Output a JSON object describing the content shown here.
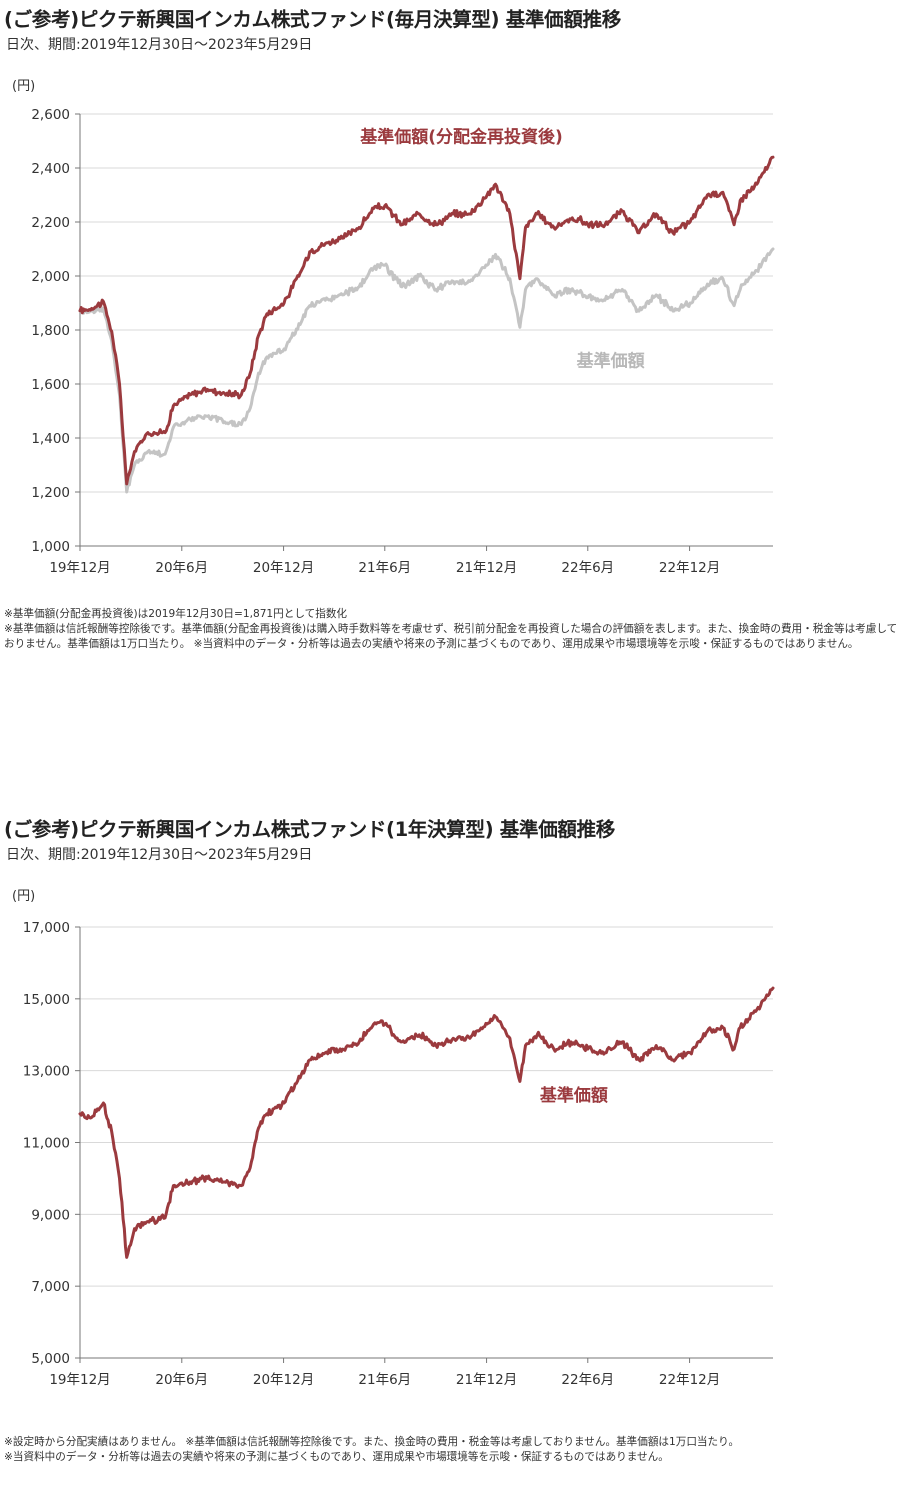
{
  "charts": [
    {
      "title": "(ご参考)ピクテ新興国インカム株式ファンド(毎月決算型) 基準価額推移",
      "subtitle": "日次、期間:2019年12月30日～2023年5月29日",
      "notes": [
        "※基準価額(分配金再投資後)は2019年12月30日=1,871円として指数化",
        "※基準価額は信託報酬等控除後です。基準価額(分配金再投資後)は購入時手数料等を考慮せず、税引前分配金を再投資した場合の評価額を表します。また、換金時の費用・税金等は考慮しておりません。基準価額は1万口当たり。 ※当資料中のデータ・分析等は過去の実績や将来の予測に基づくものであり、運用成果や市場環境等を示唆・保証するものではありません。"
      ]
    },
    {
      "title": "(ご参考)ピクテ新興国インカム株式ファンド(1年決算型) 基準価額推移",
      "subtitle": "日次、期間:2019年12月30日～2023年5月29日",
      "notes": [
        "※設定時から分配実績はありません。 ※基準価額は信託報酬等控除後です。また、換金時の費用・税金等は考慮しておりません。基準価額は1万口当たり。",
        "※当資料中のデータ・分析等は過去の実績や将来の予測に基づくものであり、運用成果や市場環境等を示唆・保証するものではありません。"
      ]
    }
  ],
  "chart_data": [
    {
      "type": "line",
      "unit_label": "(円)",
      "ylim": [
        1000,
        2600
      ],
      "yticks": [
        "1,000",
        "1,200",
        "1,400",
        "1,600",
        "1,800",
        "2,000",
        "2,200",
        "2,400",
        "2,600"
      ],
      "ytick_values": [
        1000,
        1200,
        1400,
        1600,
        1800,
        2000,
        2200,
        2400,
        2600
      ],
      "xlim": [
        "2019-12-30",
        "2023-05-29"
      ],
      "xticks": [
        "19年12月",
        "20年6月",
        "20年12月",
        "21年6月",
        "21年12月",
        "22年6月",
        "22年12月"
      ],
      "xtick_dates": [
        "2019-12-30",
        "2020-06-30",
        "2020-12-30",
        "2021-06-30",
        "2021-12-30",
        "2022-06-30",
        "2022-12-30"
      ],
      "grid": true,
      "colors": {
        "reinvested": "#9b3a3e",
        "nav": "#c4c4c4",
        "grid": "#d9d9d9",
        "axis": "#777777"
      },
      "series": [
        {
          "name": "基準価額(分配金再投資後)",
          "color": "#9b3a3e",
          "x": [
            "2019-12-30",
            "2020-01-20",
            "2020-02-10",
            "2020-02-25",
            "2020-03-10",
            "2020-03-23",
            "2020-04-06",
            "2020-04-30",
            "2020-05-31",
            "2020-06-15",
            "2020-07-15",
            "2020-08-15",
            "2020-09-15",
            "2020-10-15",
            "2020-10-31",
            "2020-11-15",
            "2020-11-30",
            "2020-12-31",
            "2021-01-31",
            "2021-02-15",
            "2021-03-15",
            "2021-04-15",
            "2021-05-15",
            "2021-06-10",
            "2021-06-30",
            "2021-07-31",
            "2021-08-31",
            "2021-09-30",
            "2021-10-31",
            "2021-11-30",
            "2021-12-31",
            "2022-01-15",
            "2022-02-10",
            "2022-02-28",
            "2022-03-10",
            "2022-03-31",
            "2022-04-30",
            "2022-05-31",
            "2022-06-15",
            "2022-06-30",
            "2022-07-31",
            "2022-08-31",
            "2022-09-30",
            "2022-10-31",
            "2022-11-30",
            "2022-12-31",
            "2023-01-31",
            "2023-02-28",
            "2023-03-20",
            "2023-03-31",
            "2023-04-30",
            "2023-05-29"
          ],
          "values": [
            1871,
            1880,
            1905,
            1795,
            1600,
            1230,
            1350,
            1420,
            1420,
            1520,
            1560,
            1580,
            1565,
            1560,
            1640,
            1780,
            1860,
            1900,
            2020,
            2090,
            2120,
            2140,
            2180,
            2250,
            2260,
            2190,
            2230,
            2190,
            2230,
            2230,
            2300,
            2340,
            2230,
            1990,
            2180,
            2230,
            2180,
            2210,
            2210,
            2190,
            2190,
            2240,
            2160,
            2230,
            2160,
            2200,
            2300,
            2310,
            2190,
            2280,
            2340,
            2440
          ]
        },
        {
          "name": "基準価額",
          "color": "#c4c4c4",
          "x": [
            "2019-12-30",
            "2020-01-20",
            "2020-02-10",
            "2020-02-25",
            "2020-03-10",
            "2020-03-23",
            "2020-04-06",
            "2020-04-30",
            "2020-05-31",
            "2020-06-15",
            "2020-07-15",
            "2020-08-15",
            "2020-09-15",
            "2020-10-15",
            "2020-10-31",
            "2020-11-15",
            "2020-11-30",
            "2020-12-31",
            "2021-01-31",
            "2021-02-15",
            "2021-03-15",
            "2021-04-15",
            "2021-05-15",
            "2021-06-10",
            "2021-06-30",
            "2021-07-31",
            "2021-08-31",
            "2021-09-30",
            "2021-10-31",
            "2021-11-30",
            "2021-12-31",
            "2022-01-15",
            "2022-02-10",
            "2022-02-28",
            "2022-03-10",
            "2022-03-31",
            "2022-04-30",
            "2022-05-31",
            "2022-06-15",
            "2022-06-30",
            "2022-07-31",
            "2022-08-31",
            "2022-09-30",
            "2022-10-31",
            "2022-11-30",
            "2022-12-31",
            "2023-01-31",
            "2023-02-28",
            "2023-03-20",
            "2023-03-31",
            "2023-04-30",
            "2023-05-29"
          ],
          "values": [
            1871,
            1870,
            1880,
            1760,
            1560,
            1200,
            1300,
            1350,
            1340,
            1440,
            1470,
            1480,
            1460,
            1450,
            1510,
            1640,
            1700,
            1730,
            1830,
            1890,
            1910,
            1930,
            1960,
            2030,
            2040,
            1960,
            2000,
            1950,
            1980,
            1980,
            2040,
            2080,
            1990,
            1810,
            1950,
            1990,
            1930,
            1950,
            1940,
            1920,
            1910,
            1950,
            1870,
            1930,
            1870,
            1900,
            1970,
            1990,
            1890,
            1950,
            2020,
            2100
          ]
        }
      ],
      "annotations": [
        {
          "text": "基準価額(分配金再投資後)",
          "color": "#9b3a3e",
          "x": "2021-11-15",
          "y": 2495
        },
        {
          "text": "基準価額",
          "color": "#b8b8b8",
          "x": "2022-08-10",
          "y": 1665
        }
      ]
    },
    {
      "type": "line",
      "unit_label": "(円)",
      "ylim": [
        5000,
        17000
      ],
      "yticks": [
        "5,000",
        "7,000",
        "9,000",
        "11,000",
        "13,000",
        "15,000",
        "17,000"
      ],
      "ytick_values": [
        5000,
        7000,
        9000,
        11000,
        13000,
        15000,
        17000
      ],
      "xlim": [
        "2019-12-30",
        "2023-05-29"
      ],
      "xticks": [
        "19年12月",
        "20年6月",
        "20年12月",
        "21年6月",
        "21年12月",
        "22年6月",
        "22年12月"
      ],
      "xtick_dates": [
        "2019-12-30",
        "2020-06-30",
        "2020-12-30",
        "2021-06-30",
        "2021-12-30",
        "2022-06-30",
        "2022-12-30"
      ],
      "grid": true,
      "colors": {
        "nav": "#9b3a3e",
        "grid": "#d9d9d9",
        "axis": "#777777"
      },
      "series": [
        {
          "name": "基準価額",
          "color": "#9b3a3e",
          "x": [
            "2019-12-30",
            "2020-01-20",
            "2020-02-10",
            "2020-02-25",
            "2020-03-10",
            "2020-03-23",
            "2020-04-06",
            "2020-04-30",
            "2020-05-31",
            "2020-06-15",
            "2020-07-15",
            "2020-08-15",
            "2020-09-15",
            "2020-10-15",
            "2020-10-31",
            "2020-11-15",
            "2020-11-30",
            "2020-12-31",
            "2021-01-31",
            "2021-02-15",
            "2021-03-15",
            "2021-04-15",
            "2021-05-15",
            "2021-06-10",
            "2021-06-30",
            "2021-07-31",
            "2021-08-31",
            "2021-09-30",
            "2021-10-31",
            "2021-11-30",
            "2021-12-31",
            "2022-01-15",
            "2022-02-10",
            "2022-02-28",
            "2022-03-10",
            "2022-03-31",
            "2022-04-30",
            "2022-05-31",
            "2022-06-15",
            "2022-06-30",
            "2022-07-31",
            "2022-08-31",
            "2022-09-30",
            "2022-10-31",
            "2022-11-30",
            "2022-12-31",
            "2023-01-31",
            "2023-02-28",
            "2023-03-20",
            "2023-03-31",
            "2023-04-30",
            "2023-05-29"
          ],
          "values": [
            11800,
            11700,
            12100,
            11300,
            10000,
            7800,
            8600,
            8800,
            8900,
            9800,
            9900,
            10000,
            9900,
            9800,
            10300,
            11400,
            11800,
            12100,
            12900,
            13300,
            13500,
            13600,
            13800,
            14300,
            14300,
            13800,
            14000,
            13700,
            13900,
            13900,
            14300,
            14500,
            13900,
            12700,
            13700,
            14000,
            13600,
            13800,
            13700,
            13600,
            13500,
            13800,
            13300,
            13700,
            13300,
            13500,
            14100,
            14200,
            13600,
            14200,
            14700,
            15300
          ]
        }
      ],
      "annotations": [
        {
          "text": "基準価額",
          "color": "#9b3a3e",
          "x": "2022-06-05",
          "y": 12150
        }
      ]
    }
  ]
}
